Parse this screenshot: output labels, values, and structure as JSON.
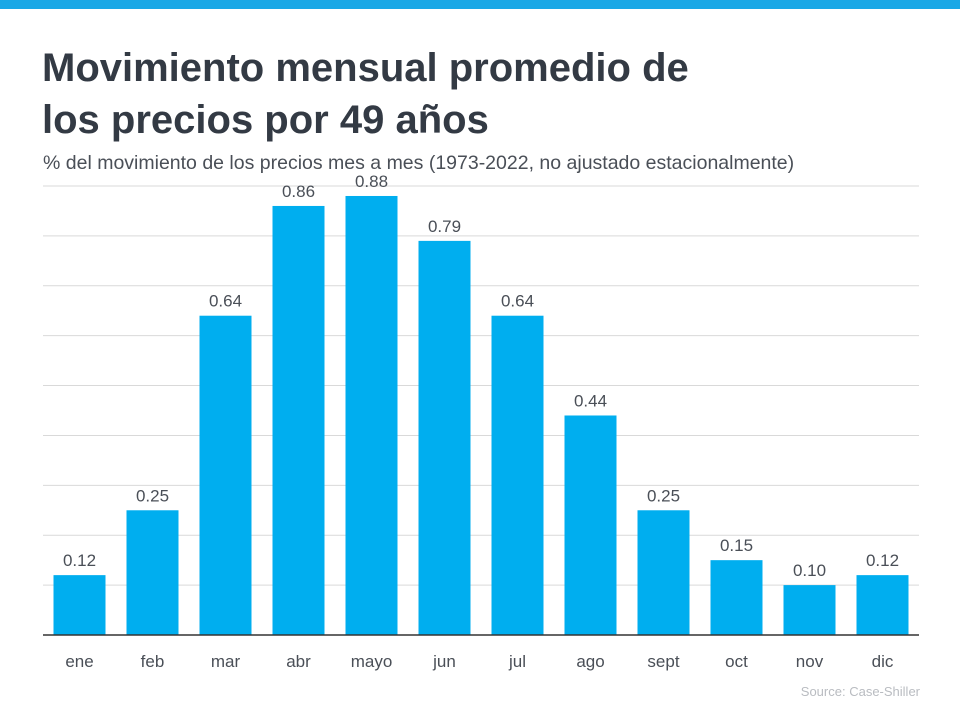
{
  "header": {
    "title": "Movimiento mensual promedio de\nlos precios por 49 años",
    "subtitle": "% del movimiento de los precios mes a mes (1973-2022, no ajustado estacionalmente)"
  },
  "footer": {
    "source": "Source: Case-Shiller"
  },
  "colors": {
    "top_bar": "#1aa8e6",
    "bar": "#00aeef",
    "title": "#333a44",
    "text": "#4a4f57",
    "grid": "#d9d9d9",
    "axis": "#333333"
  },
  "chart_data": {
    "type": "bar",
    "title": "Movimiento mensual promedio de los precios por 49 años",
    "subtitle": "% del movimiento de los precios mes a mes (1973-2022, no ajustado estacionalmente)",
    "xlabel": "",
    "ylabel": "",
    "categories": [
      "ene",
      "feb",
      "mar",
      "abr",
      "mayo",
      "jun",
      "jul",
      "ago",
      "sept",
      "oct",
      "nov",
      "dic"
    ],
    "values": [
      0.12,
      0.25,
      0.64,
      0.86,
      0.88,
      0.79,
      0.64,
      0.44,
      0.25,
      0.15,
      0.1,
      0.12
    ],
    "labels": [
      "0.12",
      "0.25",
      "0.64",
      "0.86",
      "0.88",
      "0.79",
      "0.64",
      "0.44",
      "0.25",
      "0.15",
      "0.10",
      "0.12"
    ],
    "ylim": [
      0,
      0.9
    ],
    "grid": true,
    "legend": "none"
  }
}
